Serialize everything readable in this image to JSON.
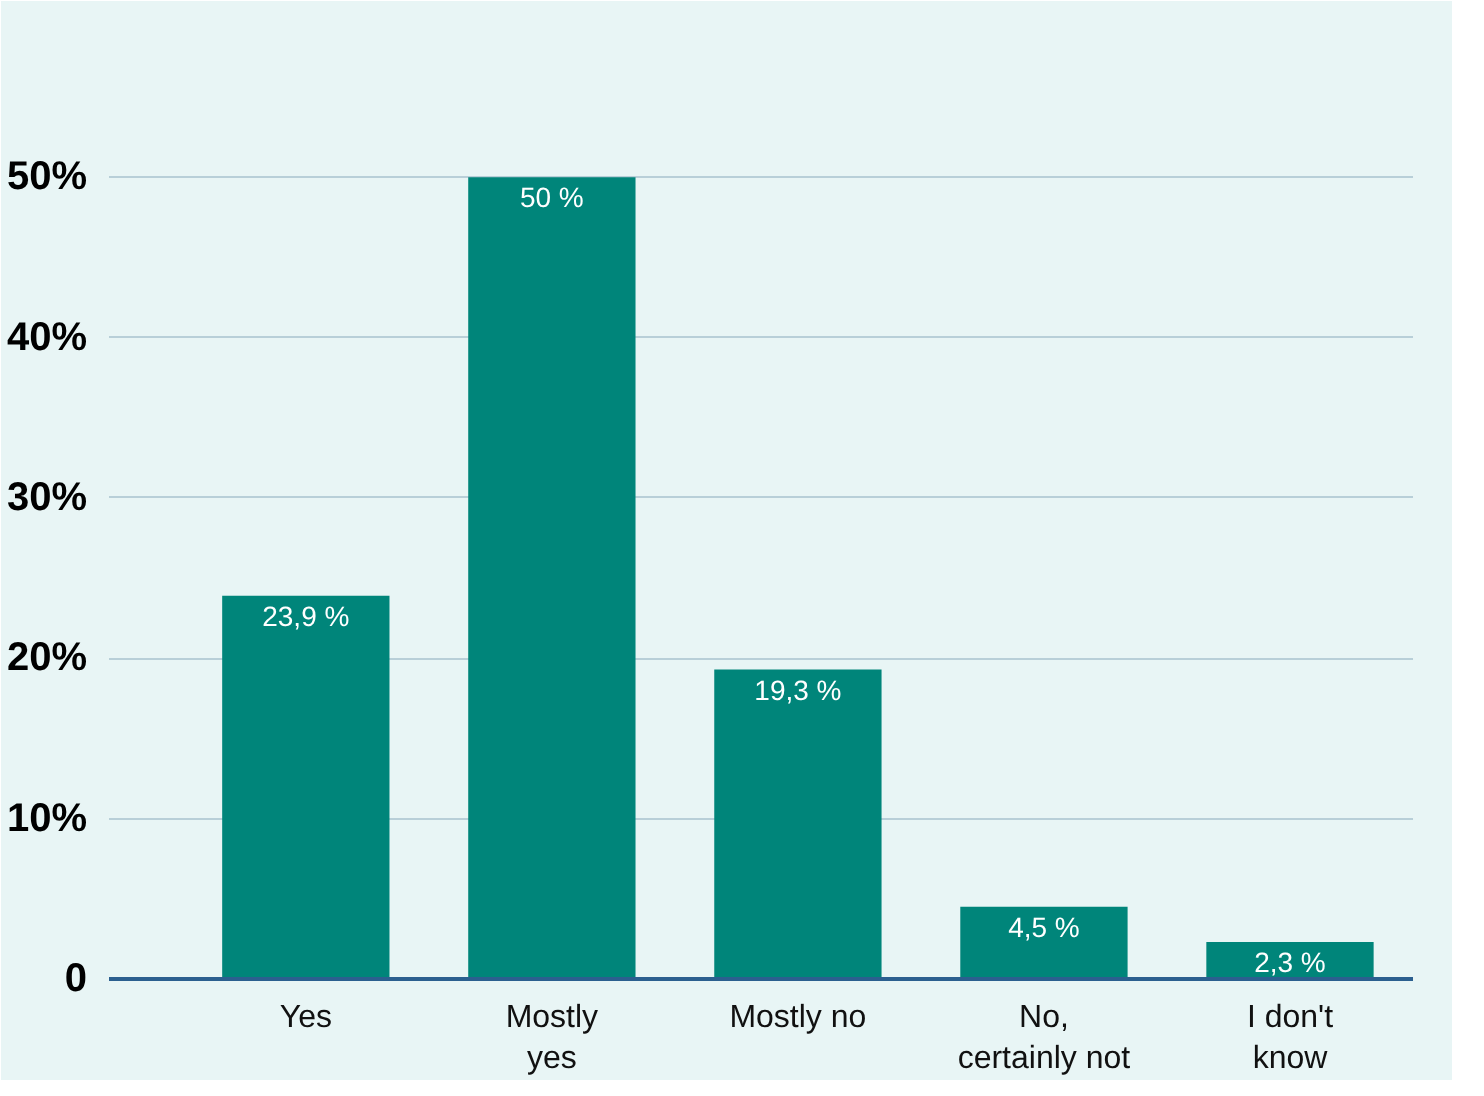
{
  "chart_data": {
    "type": "bar",
    "categories": [
      "Yes",
      "Mostly\nyes",
      "Mostly no",
      "No,\ncertainly not",
      "I don't\nknow"
    ],
    "values": [
      23.9,
      50,
      19.3,
      4.5,
      2.3
    ],
    "value_labels": [
      "23,9 %",
      "50 %",
      "19,3 %",
      "4,5 %",
      "2,3 %"
    ],
    "color": "#00857a",
    "ylim": [
      0,
      56
    ],
    "yticks": [
      {
        "value": 0,
        "label": "0"
      },
      {
        "value": 10,
        "label": "10%"
      },
      {
        "value": 20,
        "label": "20%"
      },
      {
        "value": 30,
        "label": "30%"
      },
      {
        "value": 40,
        "label": "40%"
      },
      {
        "value": 50,
        "label": "50%"
      }
    ],
    "grid": "y"
  }
}
